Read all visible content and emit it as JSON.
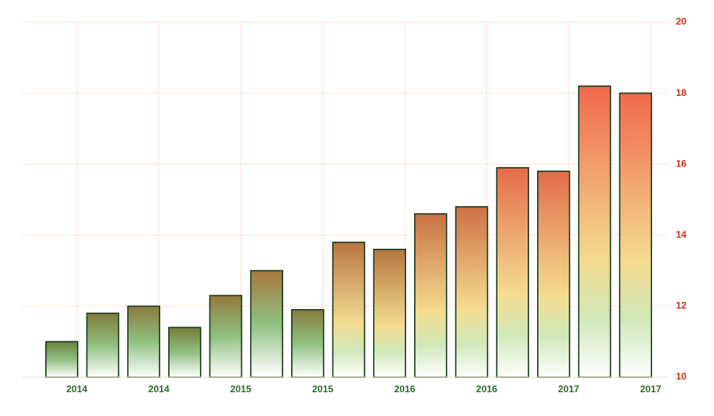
{
  "chart_data": {
    "type": "bar",
    "categories": [
      "2014",
      null,
      "2014",
      null,
      "2015",
      null,
      "2015",
      null,
      "2016",
      null,
      "2016",
      null,
      "2017",
      null,
      "2017"
    ],
    "values": [
      11.0,
      11.8,
      12.0,
      11.4,
      12.3,
      13.0,
      11.9,
      13.8,
      13.6,
      14.6,
      14.8,
      15.9,
      15.8,
      18.2,
      18.0
    ],
    "ylim": [
      10,
      20
    ],
    "yticks": [
      10,
      12,
      14,
      16,
      18,
      20
    ],
    "grid": true
  }
}
